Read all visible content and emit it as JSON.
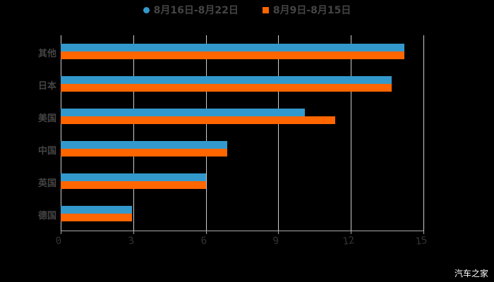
{
  "chart_data": {
    "type": "bar",
    "orientation": "horizontal",
    "title": "",
    "xlabel": "",
    "ylabel": "",
    "categories": [
      "其他",
      "日本",
      "美国",
      "中国",
      "英国",
      "德国"
    ],
    "series": [
      {
        "name": "8月16日-8月22日",
        "color": "#3399CC",
        "values": [
          14.2,
          13.7,
          10.1,
          6.9,
          6.0,
          2.95
        ]
      },
      {
        "name": "8月9日-8月15日",
        "color": "#FF6600",
        "values": [
          14.2,
          13.7,
          11.35,
          6.9,
          6.0,
          2.95
        ]
      }
    ],
    "xlim": [
      0,
      15
    ],
    "xticks": [
      "0",
      "3",
      "6",
      "9",
      "12",
      "15"
    ],
    "grid": true,
    "legend_position": "top"
  },
  "legend": {
    "series1": "8月16日-8月22日",
    "series2": "8月9日-8月15日"
  },
  "watermark": "汽车之家",
  "colors": {
    "series1": "#3399CC",
    "series2": "#FF6600",
    "background": "#000000"
  }
}
